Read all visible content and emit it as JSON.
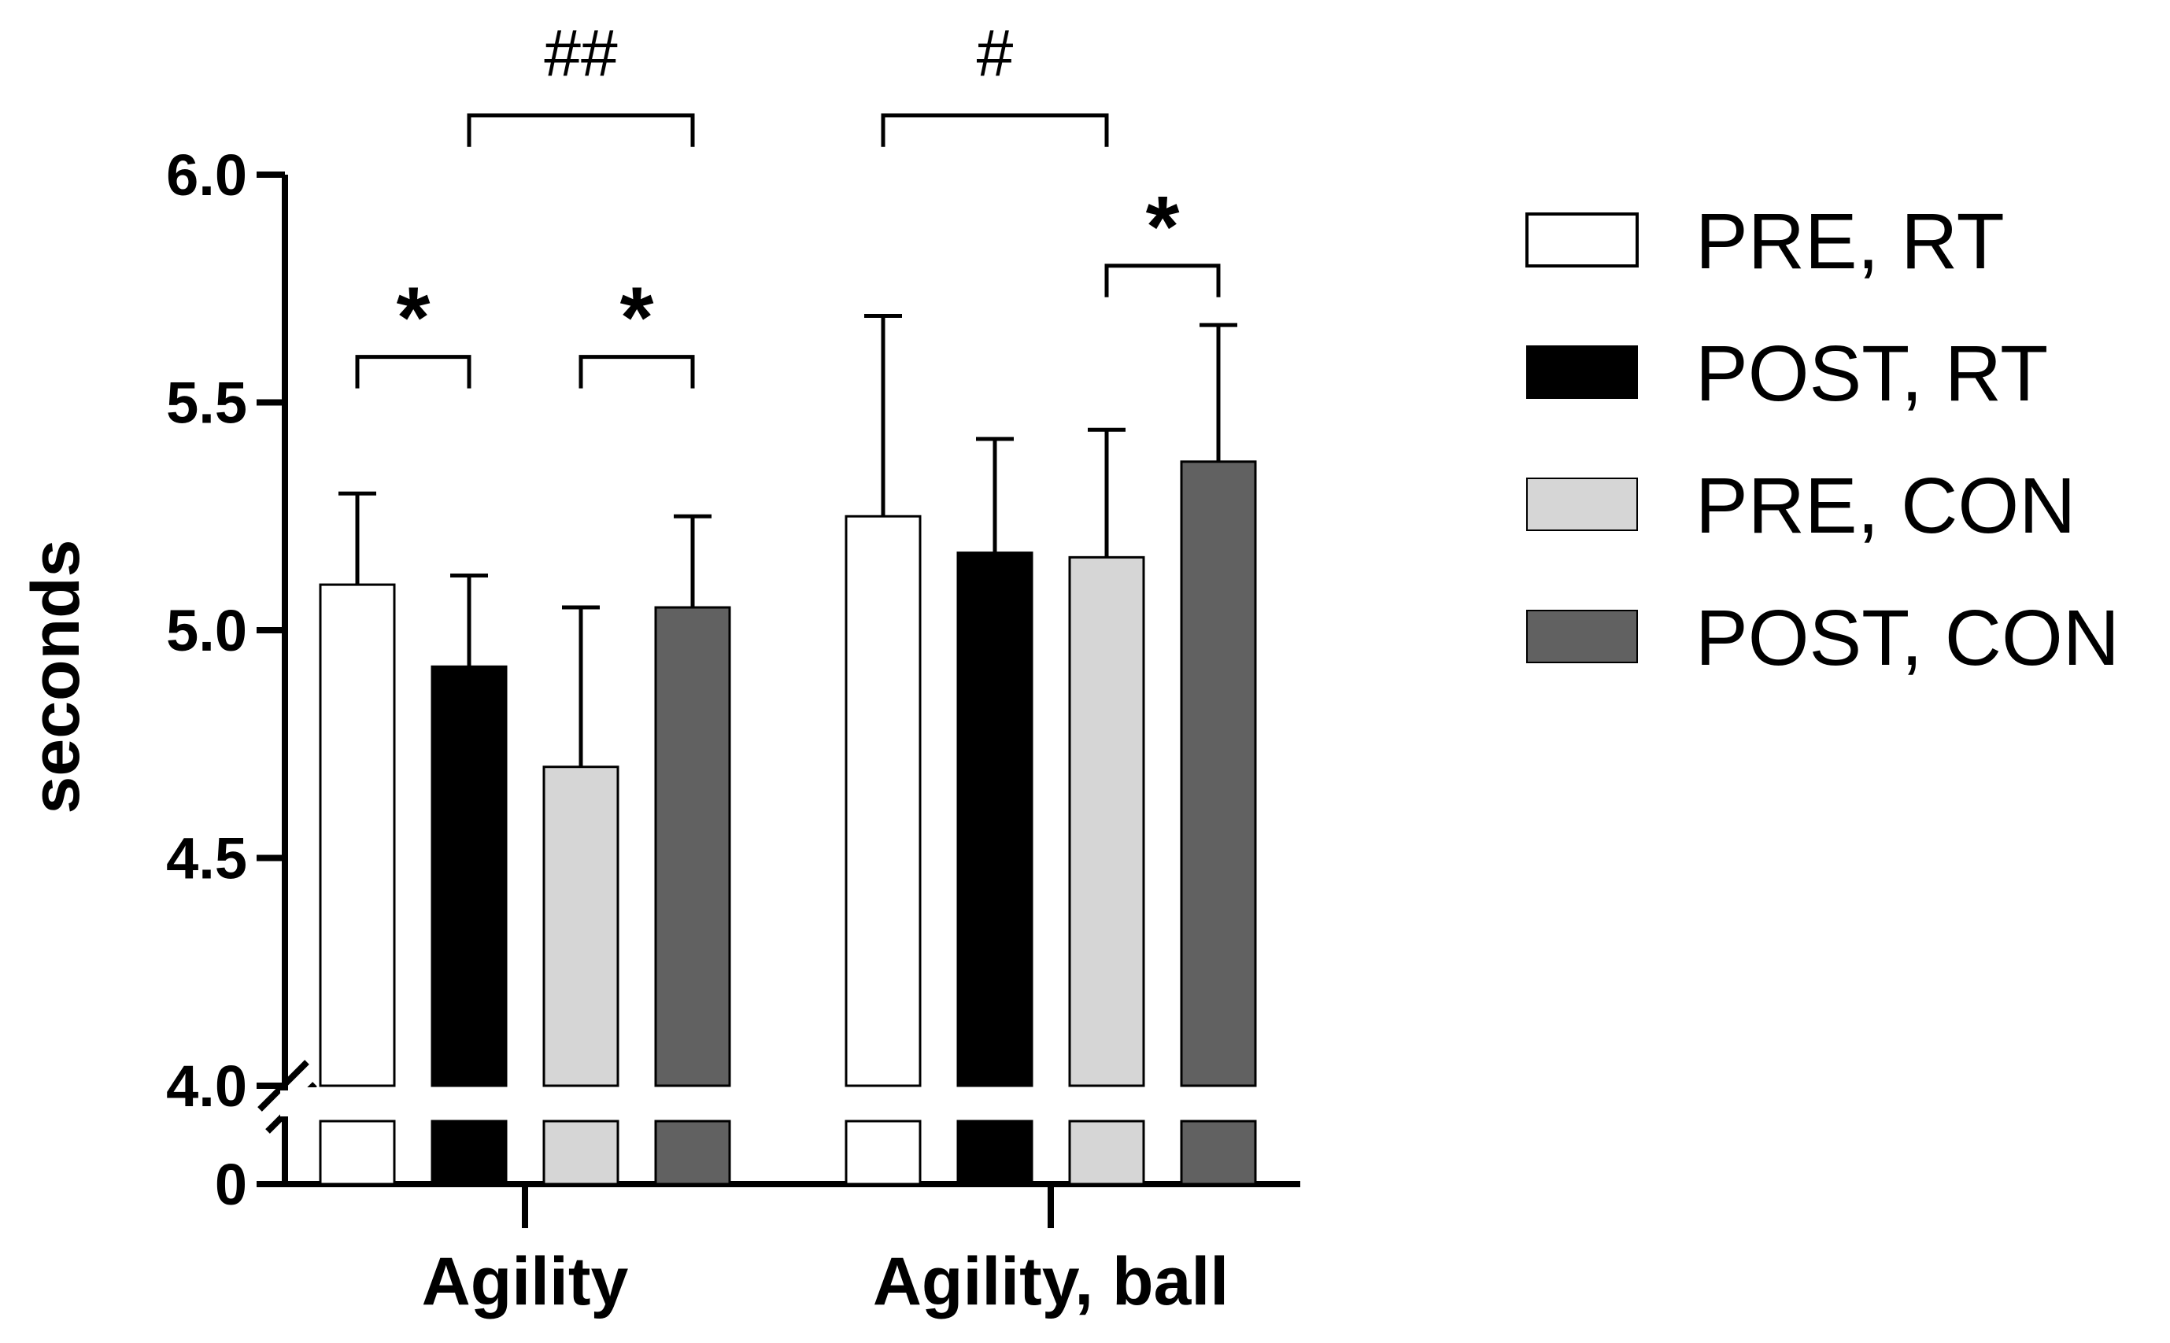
{
  "chart_data": {
    "type": "bar",
    "title": "",
    "xlabel": "",
    "ylabel": "seconds",
    "ylim": [
      4.0,
      6.0
    ],
    "axis_break": {
      "lower_tick": 0,
      "upper_start": 4.0
    },
    "y_ticks": [
      "6.0",
      "5.5",
      "5.0",
      "4.5",
      "4.0",
      "0"
    ],
    "y_tick_values": [
      6.0,
      5.5,
      5.0,
      4.5,
      4.0
    ],
    "categories": [
      "Agility",
      "Agility, ball"
    ],
    "series": [
      {
        "name": "PRE, RT",
        "color": "#ffffff",
        "values": [
          5.1,
          5.25
        ],
        "sd": [
          0.2,
          0.44
        ]
      },
      {
        "name": "POST, RT",
        "color": "#000000",
        "values": [
          4.92,
          5.17
        ],
        "sd": [
          0.2,
          0.25
        ]
      },
      {
        "name": "PRE, CON",
        "color": "#d6d6d6",
        "values": [
          4.7,
          5.16
        ],
        "sd": [
          0.35,
          0.28
        ]
      },
      {
        "name": "POST, CON",
        "color": "#616161",
        "values": [
          5.05,
          5.37
        ],
        "sd": [
          0.2,
          0.3
        ]
      }
    ],
    "annotations": [
      {
        "label": "*",
        "category": 0,
        "from_series": 0,
        "to_series": 1,
        "level": 5.6
      },
      {
        "label": "*",
        "category": 0,
        "from_series": 2,
        "to_series": 3,
        "level": 5.6
      },
      {
        "label": "##",
        "category": 0,
        "from_series": 1,
        "to_series": 3,
        "level": 6.13
      },
      {
        "label": "#",
        "category": 1,
        "from_series": 0,
        "to_series": 2,
        "level": 6.13
      },
      {
        "label": "*",
        "category": 1,
        "from_series": 2,
        "to_series": 3,
        "level": 5.8
      }
    ],
    "legend_position": "right"
  }
}
